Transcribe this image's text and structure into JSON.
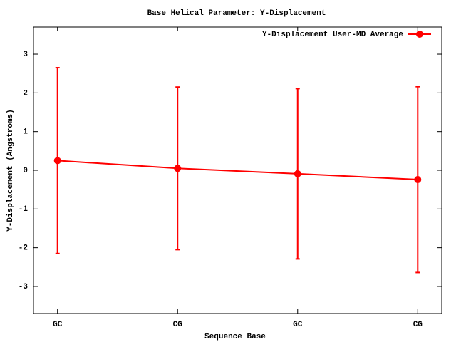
{
  "chart_data": {
    "type": "line",
    "title": "Base  Helical Parameter: Y-Displacement",
    "x_label": "Sequence Base",
    "y_label": "Y-Displacement (Angstroms)",
    "categories": [
      "GC",
      "CG",
      "GC",
      "CG"
    ],
    "series": [
      {
        "name": "Y-Displacement User-MD Average",
        "color": "#ff0000",
        "values": [
          0.25,
          0.05,
          -0.09,
          -0.24
        ],
        "errors": [
          2.4,
          2.1,
          2.2,
          2.4
        ]
      }
    ],
    "ylim": [
      -3.7,
      3.7
    ],
    "yticks": [
      -3,
      -2,
      -1,
      0,
      1,
      2,
      3
    ],
    "legend": "top-right",
    "grid": false
  }
}
